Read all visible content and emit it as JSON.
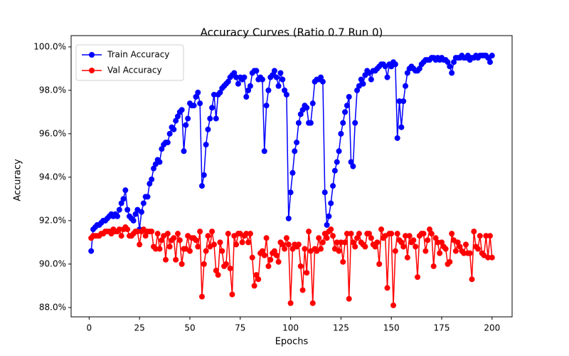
{
  "chart_data": {
    "type": "line",
    "title": "Accuracy Curves (Ratio 0.7 Run 0)",
    "x_label": "Epochs",
    "y_label": "Accuracy",
    "x": [
      1,
      2,
      3,
      4,
      5,
      6,
      7,
      8,
      9,
      10,
      11,
      12,
      13,
      14,
      15,
      16,
      17,
      18,
      19,
      20,
      21,
      22,
      23,
      24,
      25,
      26,
      27,
      28,
      29,
      30,
      31,
      32,
      33,
      34,
      35,
      36,
      37,
      38,
      39,
      40,
      41,
      42,
      43,
      44,
      45,
      46,
      47,
      48,
      49,
      50,
      51,
      52,
      53,
      54,
      55,
      56,
      57,
      58,
      59,
      60,
      61,
      62,
      63,
      64,
      65,
      66,
      67,
      68,
      69,
      70,
      71,
      72,
      73,
      74,
      75,
      76,
      77,
      78,
      79,
      80,
      81,
      82,
      83,
      84,
      85,
      86,
      87,
      88,
      89,
      90,
      91,
      92,
      93,
      94,
      95,
      96,
      97,
      98,
      99,
      100,
      101,
      102,
      103,
      104,
      105,
      106,
      107,
      108,
      109,
      110,
      111,
      112,
      113,
      114,
      115,
      116,
      117,
      118,
      119,
      120,
      121,
      122,
      123,
      124,
      125,
      126,
      127,
      128,
      129,
      130,
      131,
      132,
      133,
      134,
      135,
      136,
      137,
      138,
      139,
      140,
      141,
      142,
      143,
      144,
      145,
      146,
      147,
      148,
      149,
      150,
      151,
      152,
      153,
      154,
      155,
      156,
      157,
      158,
      159,
      160,
      161,
      162,
      163,
      164,
      165,
      166,
      167,
      168,
      169,
      170,
      171,
      172,
      173,
      174,
      175,
      176,
      177,
      178,
      179,
      180,
      181,
      182,
      183,
      184,
      185,
      186,
      187,
      188,
      189,
      190,
      191,
      192,
      193,
      194,
      195,
      196,
      197,
      198,
      199,
      200
    ],
    "series": [
      {
        "name": "Train Accuracy",
        "color": "#0000ff",
        "values": [
          90.6,
          91.6,
          91.7,
          91.8,
          91.8,
          91.9,
          92.0,
          92.0,
          92.1,
          92.2,
          92.3,
          92.2,
          92.3,
          92.2,
          92.5,
          92.8,
          93.0,
          93.4,
          92.5,
          92.2,
          92.1,
          92.0,
          92.3,
          92.5,
          91.6,
          92.4,
          92.8,
          93.1,
          93.1,
          93.7,
          93.9,
          94.4,
          94.6,
          94.8,
          94.7,
          95.3,
          95.5,
          95.6,
          95.6,
          96.0,
          96.3,
          96.2,
          96.6,
          96.8,
          97.0,
          97.1,
          95.2,
          96.4,
          96.7,
          97.4,
          97.3,
          97.3,
          97.7,
          97.9,
          97.4,
          93.6,
          94.1,
          95.5,
          96.2,
          96.7,
          97.2,
          97.8,
          96.7,
          97.8,
          97.9,
          98.1,
          98.2,
          98.3,
          98.4,
          98.6,
          98.7,
          98.8,
          98.6,
          98.3,
          98.6,
          98.5,
          98.6,
          97.7,
          98.0,
          98.2,
          98.8,
          98.9,
          98.9,
          98.5,
          98.6,
          98.5,
          95.2,
          97.3,
          98.0,
          98.6,
          98.7,
          98.9,
          98.6,
          98.2,
          98.8,
          98.5,
          98.0,
          97.8,
          92.1,
          93.3,
          94.2,
          95.2,
          95.6,
          96.5,
          96.9,
          97.1,
          97.3,
          97.2,
          96.5,
          96.5,
          97.4,
          98.4,
          98.5,
          98.5,
          98.6,
          98.4,
          93.3,
          91.8,
          92.2,
          92.8,
          93.6,
          94.3,
          94.7,
          95.2,
          96.0,
          96.5,
          97.0,
          97.3,
          97.7,
          94.7,
          94.5,
          96.5,
          98.0,
          98.2,
          98.5,
          98.3,
          98.7,
          98.9,
          98.8,
          98.5,
          98.9,
          98.9,
          99.0,
          99.1,
          99.2,
          99.2,
          99.1,
          98.6,
          99.2,
          99.1,
          99.3,
          99.2,
          95.8,
          97.5,
          96.3,
          97.5,
          98.2,
          98.8,
          99.0,
          99.1,
          99.0,
          98.9,
          98.9,
          99.0,
          99.2,
          99.3,
          99.4,
          99.4,
          99.4,
          99.5,
          99.5,
          99.4,
          99.5,
          99.4,
          99.5,
          99.4,
          99.4,
          99.3,
          99.1,
          98.8,
          99.3,
          99.5,
          99.5,
          99.5,
          99.6,
          99.5,
          99.5,
          99.6,
          99.4,
          99.5,
          99.5,
          99.6,
          99.5,
          99.6,
          99.6,
          99.6,
          99.6,
          99.5,
          99.3,
          99.6
        ]
      },
      {
        "name": "Val Accuracy",
        "color": "#ff0000",
        "values": [
          91.2,
          91.3,
          91.3,
          91.3,
          91.3,
          91.4,
          91.4,
          91.5,
          91.5,
          91.5,
          91.4,
          91.6,
          91.5,
          91.5,
          91.6,
          91.3,
          91.6,
          91.7,
          91.6,
          91.3,
          91.3,
          91.4,
          91.5,
          91.5,
          90.9,
          91.5,
          91.6,
          91.3,
          91.5,
          91.5,
          91.5,
          90.8,
          90.7,
          91.4,
          90.7,
          91.1,
          91.3,
          90.2,
          91.4,
          90.8,
          91.1,
          91.2,
          90.2,
          91.4,
          91.1,
          90.0,
          90.7,
          90.7,
          91.3,
          90.6,
          91.2,
          91.2,
          91.1,
          90.8,
          91.5,
          88.5,
          90.0,
          90.6,
          91.3,
          90.8,
          91.5,
          90.9,
          89.7,
          89.5,
          91.0,
          90.6,
          89.9,
          90.0,
          91.4,
          89.8,
          88.6,
          91.3,
          90.9,
          91.4,
          91.4,
          91.0,
          91.3,
          91.4,
          91.0,
          91.4,
          90.3,
          89.0,
          89.5,
          89.3,
          90.5,
          90.6,
          90.4,
          91.2,
          89.9,
          90.2,
          90.5,
          90.6,
          90.4,
          90.1,
          91.0,
          90.9,
          90.7,
          91.2,
          90.9,
          88.2,
          90.7,
          90.9,
          90.8,
          90.9,
          89.9,
          88.8,
          90.7,
          89.6,
          91.5,
          90.6,
          88.2,
          90.7,
          90.6,
          91.2,
          90.7,
          91.0,
          91.4,
          91.2,
          91.5,
          91.6,
          91.3,
          90.7,
          91.0,
          90.6,
          91.0,
          90.1,
          91.0,
          91.4,
          88.4,
          91.4,
          91.0,
          90.8,
          91.2,
          91.4,
          91.0,
          90.9,
          90.8,
          91.4,
          91.4,
          91.2,
          90.9,
          90.8,
          91.0,
          90.0,
          91.6,
          91.2,
          91.3,
          88.9,
          91.4,
          91.4,
          88.1,
          90.6,
          91.4,
          91.1,
          91.0,
          90.8,
          91.3,
          90.3,
          91.3,
          91.0,
          91.1,
          90.8,
          89.4,
          91.3,
          91.4,
          91.4,
          90.6,
          91.1,
          91.6,
          91.4,
          89.9,
          91.2,
          91.0,
          90.5,
          91.0,
          90.8,
          90.7,
          90.0,
          90.1,
          91.4,
          91.1,
          90.6,
          91.0,
          90.8,
          90.6,
          90.5,
          90.9,
          90.5,
          90.5,
          89.3,
          91.5,
          90.8,
          90.7,
          91.3,
          90.5,
          90.4,
          91.3,
          90.3,
          91.3,
          90.3
        ]
      }
    ],
    "xlim": [
      -8.95,
      209.95
    ],
    "xticks": [
      0,
      25,
      50,
      75,
      100,
      125,
      150,
      175,
      200
    ],
    "ylim": [
      87.57,
      100.52
    ],
    "yticks": [
      {
        "value": 88,
        "label": "88.0%"
      },
      {
        "value": 90,
        "label": "90.0%"
      },
      {
        "value": 92,
        "label": "92.0%"
      },
      {
        "value": 94,
        "label": "94.0%"
      },
      {
        "value": 96,
        "label": "96.0%"
      },
      {
        "value": 98,
        "label": "98.0%"
      },
      {
        "value": 100,
        "label": "100.0%"
      }
    ],
    "grid": false,
    "legend": "upper-left"
  }
}
